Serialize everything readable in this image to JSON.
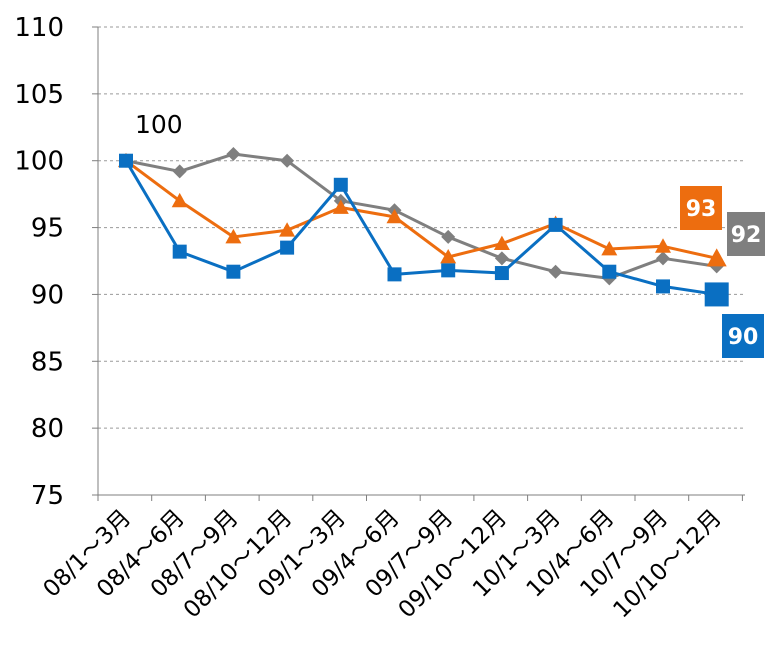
{
  "chart_data": {
    "type": "line",
    "title": "",
    "xlabel": "",
    "ylabel": "",
    "ylim": [
      75,
      110
    ],
    "yticks": [
      75,
      80,
      85,
      90,
      95,
      100,
      105,
      110
    ],
    "grid": true,
    "categories": [
      "08/1〜3月",
      "08/4〜6月",
      "08/7〜9月",
      "08/10〜12月",
      "09/1〜3月",
      "09/4〜6月",
      "09/7〜9月",
      "09/10〜12月",
      "10/1〜3月",
      "10/4〜6月",
      "10/7〜9月",
      "10/10〜12月"
    ],
    "series": [
      {
        "color": "#7f7f7f",
        "marker": "diamond",
        "end_label": "92",
        "values": [
          100,
          99.2,
          100.5,
          100,
          97,
          96.3,
          94.3,
          92.7,
          91.7,
          91.2,
          92.7,
          92.1
        ]
      },
      {
        "color": "#ed6d0f",
        "marker": "triangle",
        "end_label": "93",
        "values": [
          100,
          97,
          94.3,
          94.8,
          96.5,
          95.8,
          92.8,
          93.8,
          95.3,
          93.4,
          93.6,
          92.7
        ]
      },
      {
        "color": "#0a6fc2",
        "marker": "square",
        "end_label": "90",
        "values": [
          100,
          93.2,
          91.7,
          93.5,
          98.2,
          91.5,
          91.8,
          91.6,
          95.2,
          91.7,
          90.6,
          90
        ]
      }
    ],
    "annotations": [
      {
        "text": "100",
        "x": "08/1〜3月",
        "y": 100
      }
    ]
  }
}
